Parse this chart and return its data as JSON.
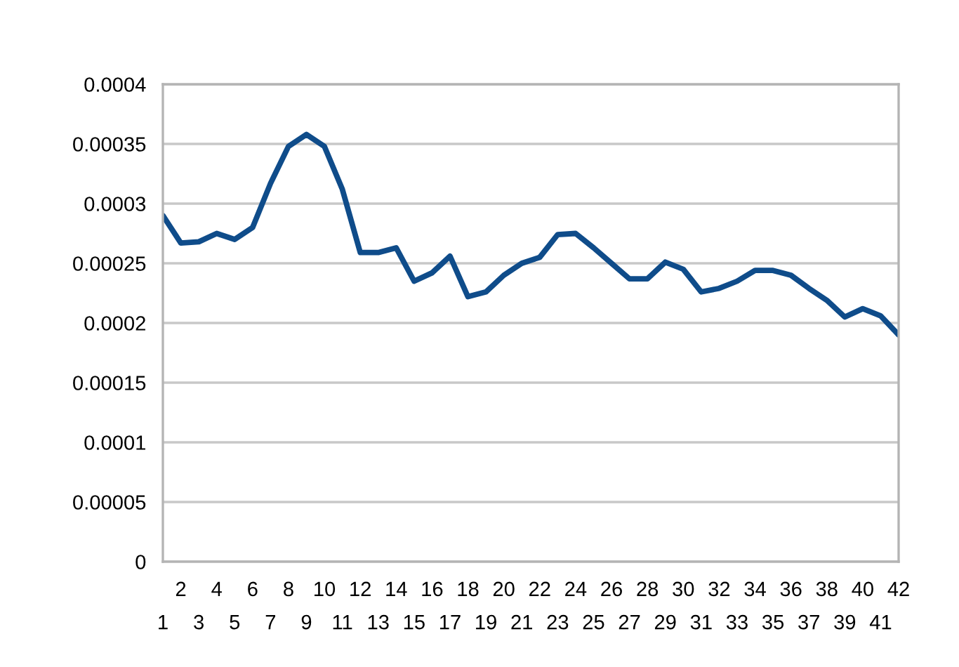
{
  "chart_data": {
    "type": "line",
    "categories": [
      "1",
      "2",
      "3",
      "4",
      "5",
      "6",
      "7",
      "8",
      "9",
      "10",
      "11",
      "12",
      "13",
      "14",
      "15",
      "16",
      "17",
      "18",
      "19",
      "20",
      "21",
      "22",
      "23",
      "24",
      "25",
      "26",
      "27",
      "28",
      "29",
      "30",
      "31",
      "32",
      "33",
      "34",
      "35",
      "36",
      "37",
      "38",
      "39",
      "40",
      "41",
      "42"
    ],
    "series": [
      {
        "color": "#0f4c8a",
        "values": [
          0.00029,
          0.000267,
          0.000268,
          0.000275,
          0.00027,
          0.00028,
          0.000317,
          0.000348,
          0.000358,
          0.000348,
          0.000312,
          0.000259,
          0.000259,
          0.000263,
          0.000235,
          0.000242,
          0.000256,
          0.000222,
          0.000226,
          0.00024,
          0.00025,
          0.000255,
          0.000274,
          0.000275,
          0.000263,
          0.00025,
          0.000237,
          0.000237,
          0.000251,
          0.000245,
          0.000226,
          0.000229,
          0.000235,
          0.000244,
          0.000244,
          0.00024,
          0.000229,
          0.000219,
          0.000205,
          0.000212,
          0.000206,
          0.00019
        ]
      }
    ],
    "ylim": [
      0,
      0.0004
    ],
    "yticks": [
      {
        "value": 0,
        "label": "0"
      },
      {
        "value": 5e-05,
        "label": "0.00005"
      },
      {
        "value": 0.0001,
        "label": "0.0001"
      },
      {
        "value": 0.00015,
        "label": "0.00015"
      },
      {
        "value": 0.0002,
        "label": "0.0002"
      },
      {
        "value": 0.00025,
        "label": "0.00025"
      },
      {
        "value": 0.0003,
        "label": "0.0003"
      },
      {
        "value": 0.00035,
        "label": "0.00035"
      },
      {
        "value": 0.0004,
        "label": "0.0004"
      }
    ],
    "grid": "y",
    "marker": "none",
    "line_style": "solid"
  }
}
